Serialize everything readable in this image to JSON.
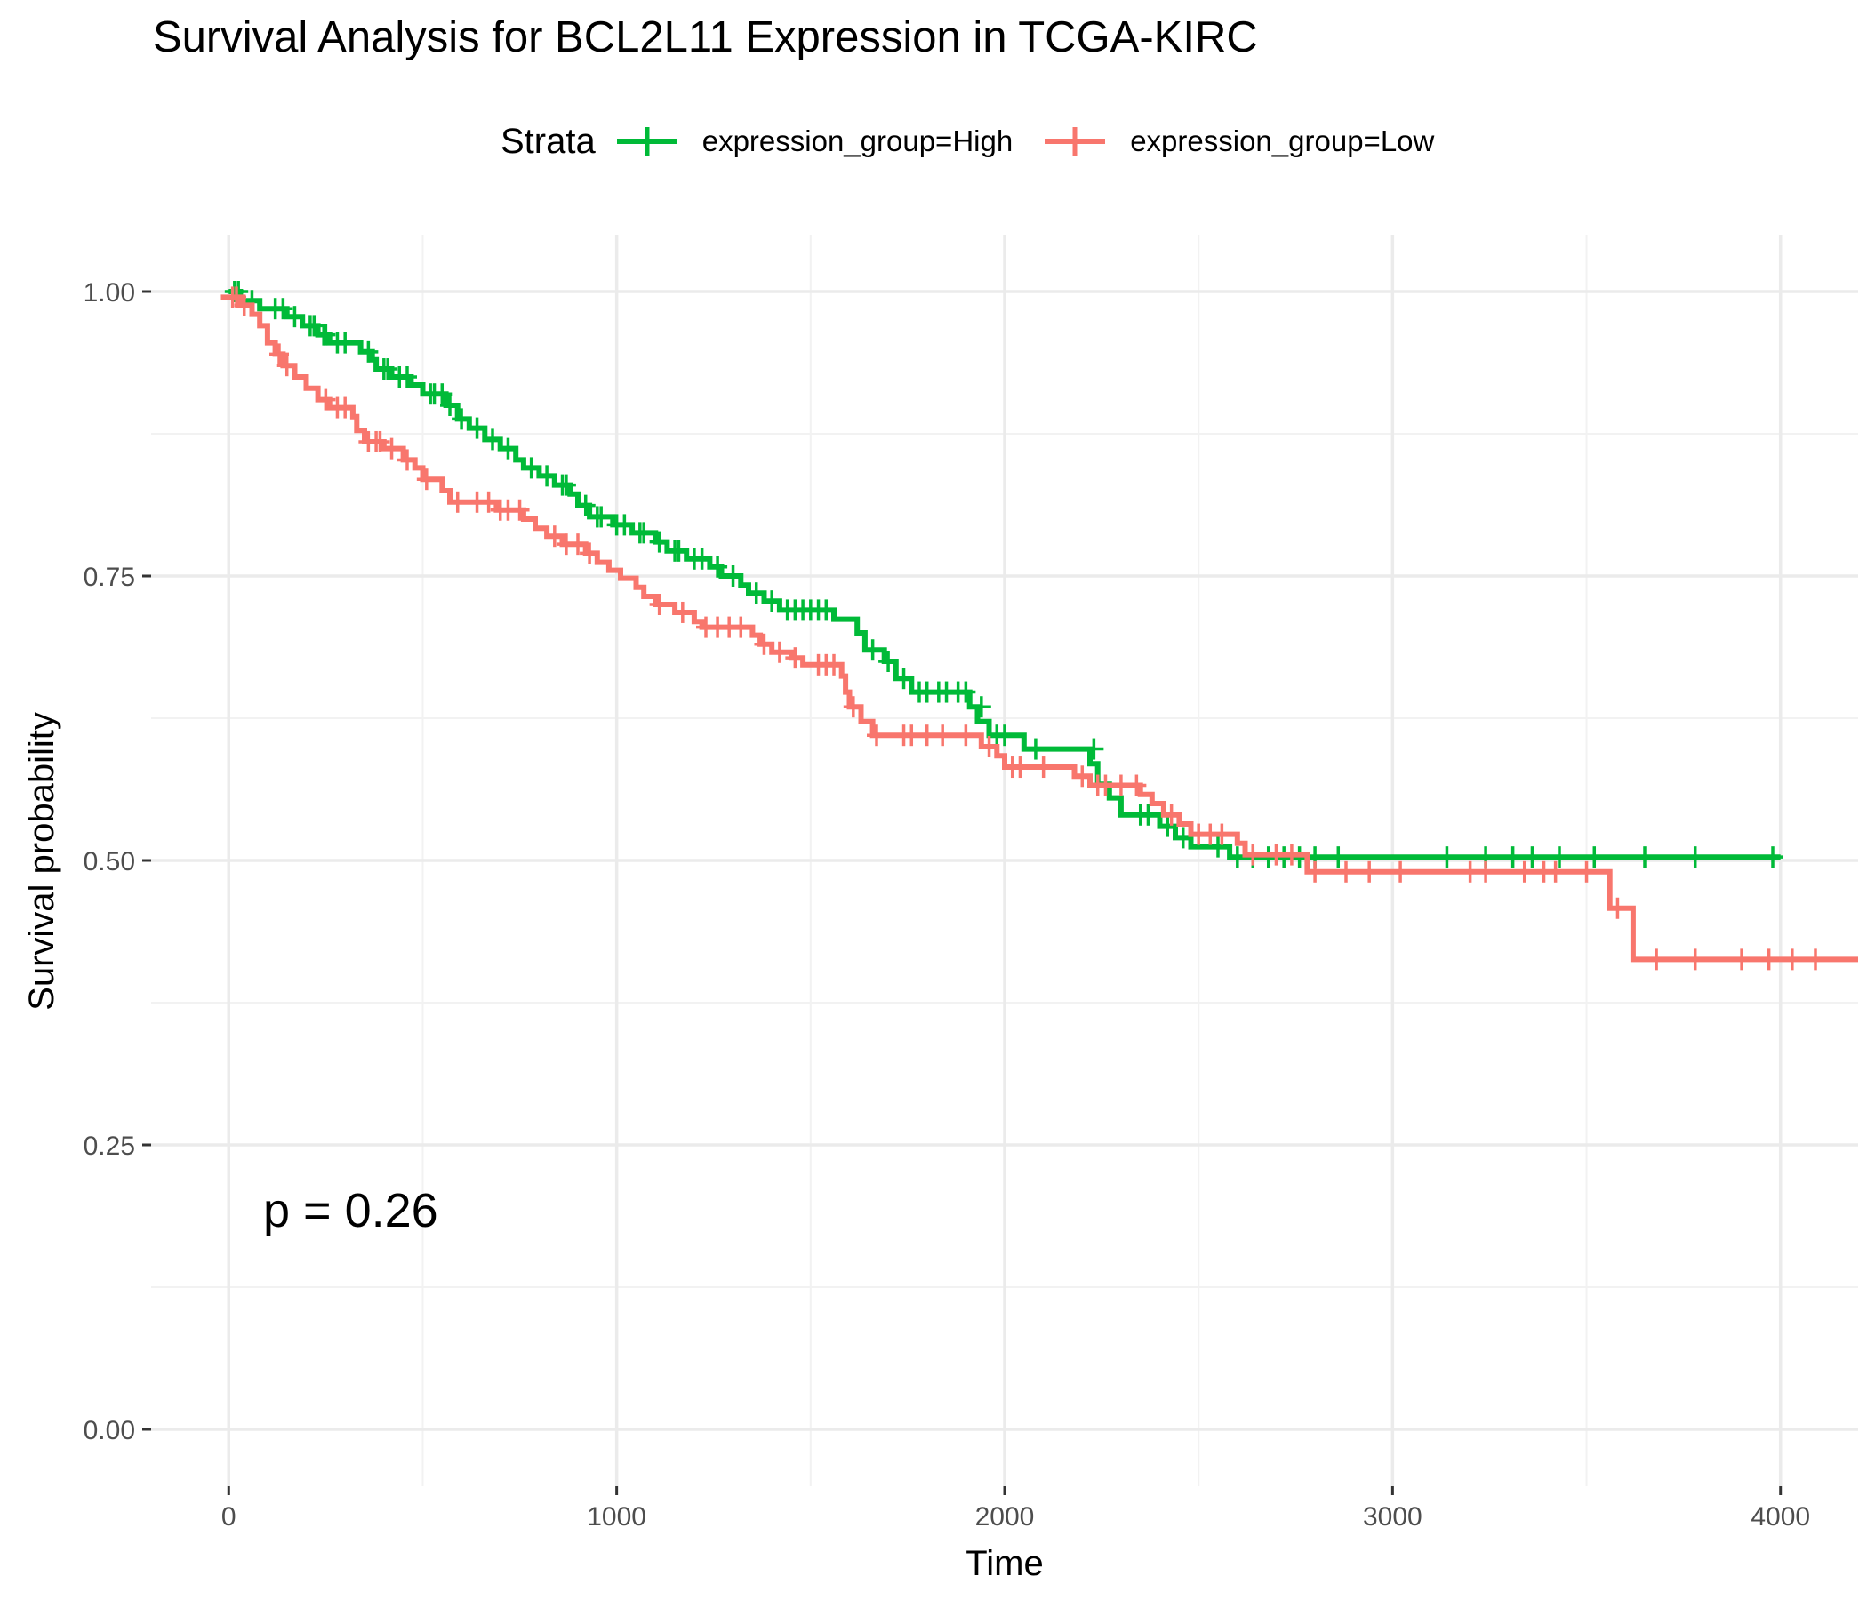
{
  "chart_data": {
    "type": "line",
    "title": "Survival Analysis for BCL2L11 Expression in TCGA-KIRC",
    "xlabel": "Time",
    "ylabel": "Survival probability",
    "xlim": [
      -200,
      4200
    ],
    "ylim": [
      -0.05,
      1.05
    ],
    "x_ticks": [
      0,
      1000,
      2000,
      3000,
      4000
    ],
    "x_tick_labels": [
      "0",
      "1000",
      "2000",
      "3000",
      "4000"
    ],
    "y_ticks": [
      0,
      0.25,
      0.5,
      0.75,
      1.0
    ],
    "y_tick_labels": [
      "0.00",
      "0.25",
      "0.50",
      "0.75",
      "1.00"
    ],
    "grid": true,
    "legend": {
      "title": "Strata",
      "position": "top"
    },
    "annotation": "p = 0.26",
    "series": [
      {
        "name": "expression_group=High",
        "color": "#00BA38",
        "steps": [
          [
            0,
            1.0
          ],
          [
            30,
            0.992
          ],
          [
            80,
            0.985
          ],
          [
            150,
            0.978
          ],
          [
            190,
            0.97
          ],
          [
            230,
            0.962
          ],
          [
            260,
            0.955
          ],
          [
            340,
            0.947
          ],
          [
            370,
            0.94
          ],
          [
            380,
            0.932
          ],
          [
            420,
            0.925
          ],
          [
            470,
            0.918
          ],
          [
            500,
            0.91
          ],
          [
            560,
            0.9
          ],
          [
            590,
            0.888
          ],
          [
            620,
            0.88
          ],
          [
            660,
            0.87
          ],
          [
            700,
            0.862
          ],
          [
            740,
            0.852
          ],
          [
            760,
            0.845
          ],
          [
            800,
            0.838
          ],
          [
            840,
            0.83
          ],
          [
            880,
            0.822
          ],
          [
            900,
            0.812
          ],
          [
            930,
            0.802
          ],
          [
            990,
            0.795
          ],
          [
            1040,
            0.788
          ],
          [
            1100,
            0.78
          ],
          [
            1130,
            0.772
          ],
          [
            1180,
            0.765
          ],
          [
            1240,
            0.758
          ],
          [
            1270,
            0.75
          ],
          [
            1320,
            0.742
          ],
          [
            1340,
            0.735
          ],
          [
            1380,
            0.728
          ],
          [
            1420,
            0.72
          ],
          [
            1560,
            0.712
          ],
          [
            1620,
            0.7
          ],
          [
            1640,
            0.685
          ],
          [
            1690,
            0.675
          ],
          [
            1720,
            0.66
          ],
          [
            1760,
            0.648
          ],
          [
            1910,
            0.635
          ],
          [
            1930,
            0.622
          ],
          [
            1960,
            0.61
          ],
          [
            2050,
            0.598
          ],
          [
            2220,
            0.585
          ],
          [
            2240,
            0.567
          ],
          [
            2270,
            0.555
          ],
          [
            2300,
            0.54
          ],
          [
            2400,
            0.53
          ],
          [
            2440,
            0.52
          ],
          [
            2480,
            0.512
          ],
          [
            2580,
            0.503
          ],
          [
            4000,
            0.503
          ]
        ],
        "censors": [
          [
            15,
            1.0
          ],
          [
            25,
            1.0
          ],
          [
            60,
            0.992
          ],
          [
            120,
            0.985
          ],
          [
            140,
            0.985
          ],
          [
            170,
            0.978
          ],
          [
            210,
            0.97
          ],
          [
            220,
            0.97
          ],
          [
            245,
            0.962
          ],
          [
            250,
            0.962
          ],
          [
            280,
            0.955
          ],
          [
            300,
            0.955
          ],
          [
            360,
            0.947
          ],
          [
            400,
            0.932
          ],
          [
            410,
            0.932
          ],
          [
            440,
            0.925
          ],
          [
            460,
            0.925
          ],
          [
            520,
            0.91
          ],
          [
            530,
            0.91
          ],
          [
            550,
            0.91
          ],
          [
            570,
            0.9
          ],
          [
            600,
            0.888
          ],
          [
            640,
            0.88
          ],
          [
            680,
            0.87
          ],
          [
            720,
            0.862
          ],
          [
            780,
            0.845
          ],
          [
            820,
            0.838
          ],
          [
            860,
            0.83
          ],
          [
            870,
            0.83
          ],
          [
            920,
            0.812
          ],
          [
            950,
            0.802
          ],
          [
            960,
            0.802
          ],
          [
            1000,
            0.795
          ],
          [
            1020,
            0.795
          ],
          [
            1060,
            0.788
          ],
          [
            1070,
            0.788
          ],
          [
            1110,
            0.78
          ],
          [
            1150,
            0.772
          ],
          [
            1160,
            0.772
          ],
          [
            1200,
            0.765
          ],
          [
            1220,
            0.765
          ],
          [
            1260,
            0.758
          ],
          [
            1300,
            0.75
          ],
          [
            1360,
            0.735
          ],
          [
            1400,
            0.728
          ],
          [
            1440,
            0.72
          ],
          [
            1460,
            0.72
          ],
          [
            1480,
            0.72
          ],
          [
            1500,
            0.72
          ],
          [
            1520,
            0.72
          ],
          [
            1540,
            0.72
          ],
          [
            1660,
            0.685
          ],
          [
            1700,
            0.675
          ],
          [
            1740,
            0.66
          ],
          [
            1780,
            0.648
          ],
          [
            1800,
            0.648
          ],
          [
            1830,
            0.648
          ],
          [
            1850,
            0.648
          ],
          [
            1880,
            0.648
          ],
          [
            1900,
            0.648
          ],
          [
            1940,
            0.635
          ],
          [
            1980,
            0.61
          ],
          [
            2000,
            0.61
          ],
          [
            2080,
            0.598
          ],
          [
            2230,
            0.598
          ],
          [
            2350,
            0.54
          ],
          [
            2370,
            0.54
          ],
          [
            2420,
            0.53
          ],
          [
            2460,
            0.52
          ],
          [
            2550,
            0.512
          ],
          [
            2600,
            0.503
          ],
          [
            2640,
            0.503
          ],
          [
            2680,
            0.503
          ],
          [
            2720,
            0.503
          ],
          [
            2760,
            0.503
          ],
          [
            2800,
            0.503
          ],
          [
            2860,
            0.503
          ],
          [
            3140,
            0.503
          ],
          [
            3240,
            0.503
          ],
          [
            3310,
            0.503
          ],
          [
            3360,
            0.503
          ],
          [
            3430,
            0.503
          ],
          [
            3520,
            0.503
          ],
          [
            3650,
            0.503
          ],
          [
            3780,
            0.503
          ],
          [
            3980,
            0.503
          ]
        ]
      },
      {
        "name": "expression_group=Low",
        "color": "#F8766D",
        "steps": [
          [
            -20,
            0.995
          ],
          [
            30,
            0.988
          ],
          [
            60,
            0.98
          ],
          [
            80,
            0.97
          ],
          [
            100,
            0.955
          ],
          [
            120,
            0.945
          ],
          [
            140,
            0.935
          ],
          [
            170,
            0.925
          ],
          [
            200,
            0.915
          ],
          [
            230,
            0.905
          ],
          [
            260,
            0.898
          ],
          [
            320,
            0.89
          ],
          [
            330,
            0.878
          ],
          [
            350,
            0.868
          ],
          [
            400,
            0.862
          ],
          [
            450,
            0.852
          ],
          [
            480,
            0.845
          ],
          [
            500,
            0.835
          ],
          [
            550,
            0.825
          ],
          [
            570,
            0.815
          ],
          [
            690,
            0.808
          ],
          [
            760,
            0.8
          ],
          [
            790,
            0.792
          ],
          [
            820,
            0.785
          ],
          [
            860,
            0.778
          ],
          [
            920,
            0.77
          ],
          [
            950,
            0.762
          ],
          [
            980,
            0.755
          ],
          [
            1010,
            0.748
          ],
          [
            1050,
            0.74
          ],
          [
            1070,
            0.732
          ],
          [
            1100,
            0.725
          ],
          [
            1150,
            0.718
          ],
          [
            1200,
            0.71
          ],
          [
            1220,
            0.705
          ],
          [
            1350,
            0.698
          ],
          [
            1370,
            0.69
          ],
          [
            1400,
            0.683
          ],
          [
            1450,
            0.678
          ],
          [
            1480,
            0.672
          ],
          [
            1580,
            0.662
          ],
          [
            1590,
            0.648
          ],
          [
            1600,
            0.635
          ],
          [
            1630,
            0.622
          ],
          [
            1660,
            0.61
          ],
          [
            1940,
            0.6
          ],
          [
            1980,
            0.592
          ],
          [
            2000,
            0.582
          ],
          [
            2180,
            0.574
          ],
          [
            2220,
            0.566
          ],
          [
            2350,
            0.558
          ],
          [
            2380,
            0.55
          ],
          [
            2410,
            0.54
          ],
          [
            2450,
            0.532
          ],
          [
            2480,
            0.523
          ],
          [
            2600,
            0.515
          ],
          [
            2620,
            0.505
          ],
          [
            2780,
            0.49
          ],
          [
            3560,
            0.458
          ],
          [
            3620,
            0.413
          ],
          [
            4200,
            0.413
          ]
        ],
        "censors": [
          [
            10,
            0.995
          ],
          [
            20,
            0.995
          ],
          [
            40,
            0.988
          ],
          [
            130,
            0.945
          ],
          [
            150,
            0.935
          ],
          [
            250,
            0.905
          ],
          [
            280,
            0.898
          ],
          [
            300,
            0.898
          ],
          [
            360,
            0.868
          ],
          [
            380,
            0.868
          ],
          [
            390,
            0.868
          ],
          [
            420,
            0.862
          ],
          [
            460,
            0.852
          ],
          [
            510,
            0.835
          ],
          [
            590,
            0.815
          ],
          [
            640,
            0.815
          ],
          [
            670,
            0.815
          ],
          [
            700,
            0.808
          ],
          [
            720,
            0.808
          ],
          [
            750,
            0.808
          ],
          [
            840,
            0.785
          ],
          [
            870,
            0.778
          ],
          [
            900,
            0.778
          ],
          [
            930,
            0.77
          ],
          [
            1110,
            0.725
          ],
          [
            1170,
            0.718
          ],
          [
            1230,
            0.705
          ],
          [
            1260,
            0.705
          ],
          [
            1290,
            0.705
          ],
          [
            1320,
            0.705
          ],
          [
            1380,
            0.69
          ],
          [
            1420,
            0.683
          ],
          [
            1460,
            0.678
          ],
          [
            1520,
            0.672
          ],
          [
            1540,
            0.672
          ],
          [
            1560,
            0.672
          ],
          [
            1610,
            0.635
          ],
          [
            1670,
            0.61
          ],
          [
            1740,
            0.61
          ],
          [
            1760,
            0.61
          ],
          [
            1800,
            0.61
          ],
          [
            1840,
            0.61
          ],
          [
            1900,
            0.61
          ],
          [
            1960,
            0.6
          ],
          [
            2020,
            0.582
          ],
          [
            2040,
            0.582
          ],
          [
            2100,
            0.582
          ],
          [
            2200,
            0.574
          ],
          [
            2240,
            0.566
          ],
          [
            2260,
            0.566
          ],
          [
            2300,
            0.566
          ],
          [
            2340,
            0.566
          ],
          [
            2430,
            0.54
          ],
          [
            2500,
            0.523
          ],
          [
            2530,
            0.523
          ],
          [
            2560,
            0.523
          ],
          [
            2640,
            0.505
          ],
          [
            2700,
            0.505
          ],
          [
            2740,
            0.505
          ],
          [
            2800,
            0.49
          ],
          [
            2880,
            0.49
          ],
          [
            2940,
            0.49
          ],
          [
            3020,
            0.49
          ],
          [
            3200,
            0.49
          ],
          [
            3240,
            0.49
          ],
          [
            3340,
            0.49
          ],
          [
            3390,
            0.49
          ],
          [
            3420,
            0.49
          ],
          [
            3500,
            0.49
          ],
          [
            3580,
            0.458
          ],
          [
            3680,
            0.413
          ],
          [
            3780,
            0.413
          ],
          [
            3900,
            0.413
          ],
          [
            3970,
            0.413
          ],
          [
            4030,
            0.413
          ],
          [
            4090,
            0.413
          ]
        ]
      }
    ]
  }
}
